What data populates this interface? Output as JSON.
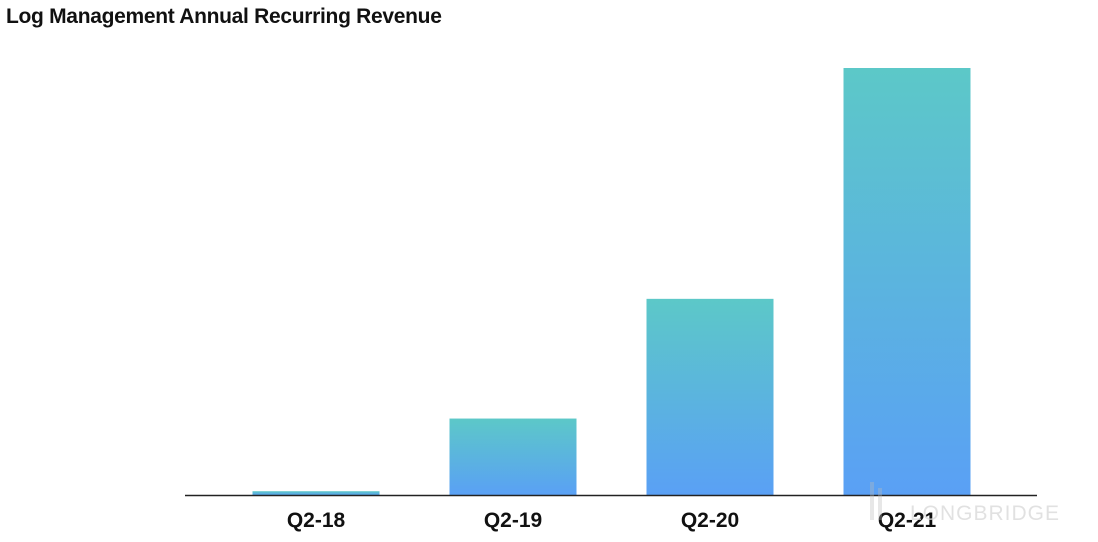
{
  "chart_data": {
    "type": "bar",
    "title": "Log Management Annual Recurring Revenue",
    "xlabel": "",
    "ylabel": "",
    "categories": [
      "Q2-18",
      "Q2-19",
      "Q2-20",
      "Q2-21"
    ],
    "values": [
      1,
      18,
      46,
      100
    ],
    "ylim": [
      0,
      100
    ],
    "grid": false,
    "bar_colors": {
      "top": "#5cc8c8",
      "bottom": "#5aa0f5"
    },
    "axis_color": "#222222"
  },
  "watermark": {
    "text": "LONGBRIDGE"
  }
}
